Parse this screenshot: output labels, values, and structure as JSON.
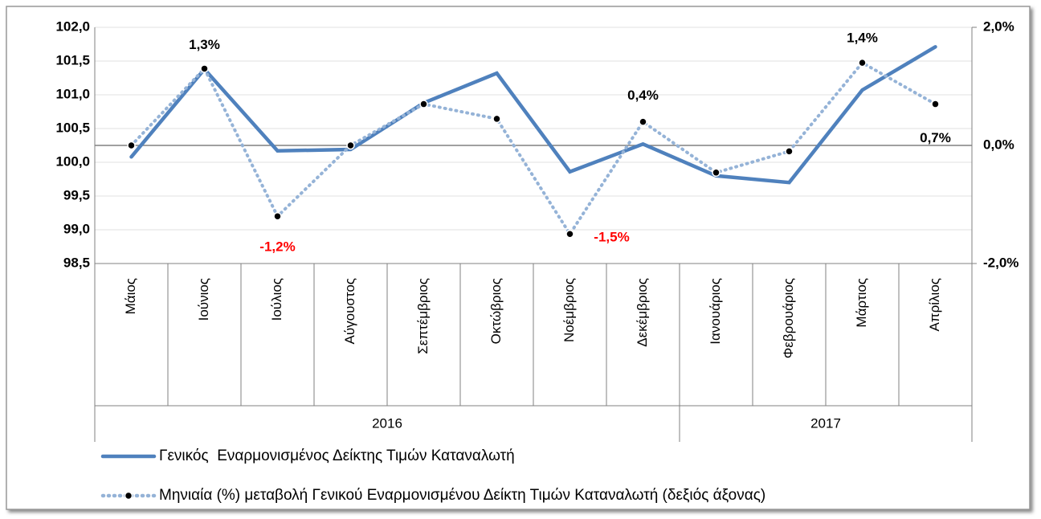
{
  "chart_data": {
    "type": "line",
    "categories": [
      "Μάιος",
      "Ιούνιος",
      "Ιούλιος",
      "Αύγουστος",
      "Σεπτέμβριος",
      "Οκτώβριος",
      "Νοέμβριος",
      "Δεκέμβριος",
      "Ιανουάριος",
      "Φεβρουάριος",
      "Μάρτιος",
      "Απρίλιος"
    ],
    "groups": [
      {
        "label": "2016",
        "span": 8
      },
      {
        "label": "2017",
        "span": 4
      }
    ],
    "ylim": [
      98.5,
      102.0
    ],
    "yticks": [
      {
        "value": 98.5,
        "label": "98,5"
      },
      {
        "value": 99.0,
        "label": "99,0"
      },
      {
        "value": 99.5,
        "label": "99,5"
      },
      {
        "value": 100.0,
        "label": "100,0"
      },
      {
        "value": 100.5,
        "label": "100,5"
      },
      {
        "value": 101.0,
        "label": "101,0"
      },
      {
        "value": 101.5,
        "label": "101,5"
      },
      {
        "value": 102.0,
        "label": "102,0"
      }
    ],
    "y2lim": [
      -2.0,
      2.0
    ],
    "y2ticks": [
      {
        "value": -2.0,
        "label": "-2,0%"
      },
      {
        "value": 0.0,
        "label": "0,0%"
      },
      {
        "value": 2.0,
        "label": "2,0%"
      }
    ],
    "grid": true,
    "series": [
      {
        "name": "Γενικός  Εναρμονισμένος Δείκτης Τιμών Καταναλωτή",
        "color": "#4f81bd",
        "style": "solid",
        "values": [
          100.08,
          101.38,
          100.17,
          100.19,
          100.88,
          101.32,
          99.86,
          100.27,
          99.8,
          99.7,
          101.07,
          101.71
        ]
      },
      {
        "name": "Μηνιαία (%) μεταβολή Γενικού Εναρμονισμένου Δείκτη Τιμών Καταναλωτή (δεξιός άξονας)",
        "color": "#95b3d7",
        "style": "dotted",
        "axis": "y2",
        "values": [
          0.0,
          1.3,
          -1.2,
          0.0,
          0.7,
          0.45,
          -1.5,
          0.4,
          -0.46,
          -0.1,
          1.4,
          0.7
        ],
        "value_labels": [
          null,
          "1,3%",
          "-1,2%",
          null,
          null,
          null,
          "-1,5%",
          "0,4%",
          null,
          null,
          "1,4%",
          "0,7%"
        ]
      }
    ]
  }
}
